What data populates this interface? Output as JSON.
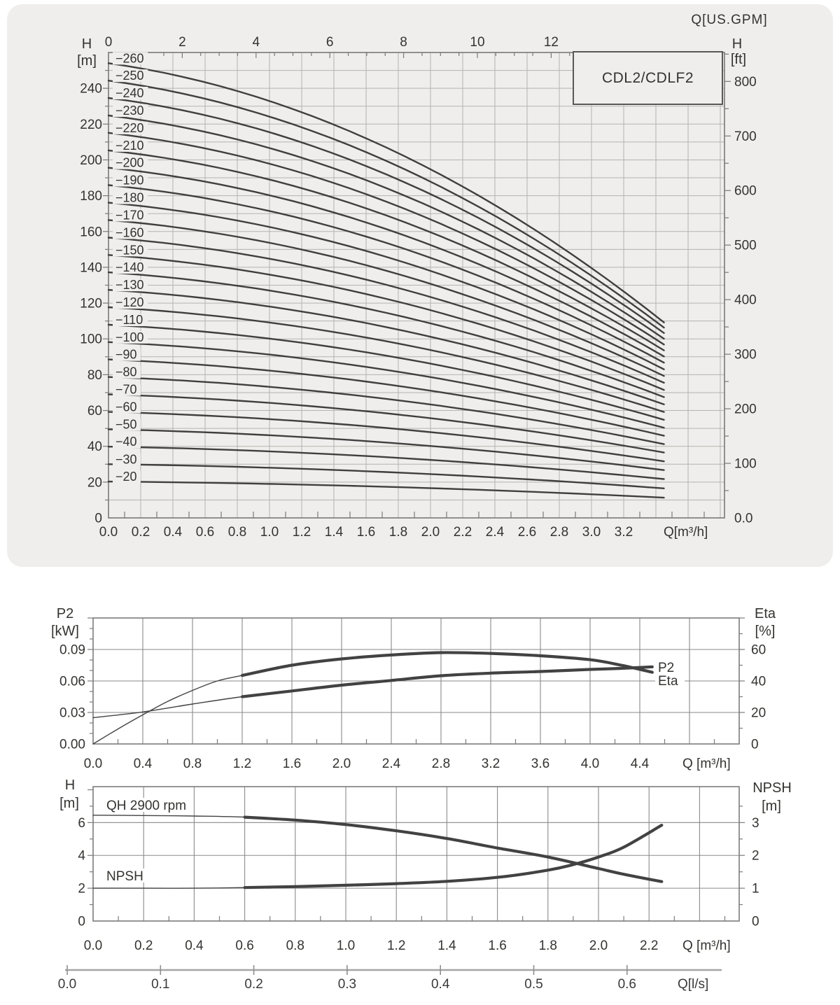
{
  "style": {
    "panel_bg": "#efeeec",
    "grid_top": "#b5b3b0",
    "border_top": "#7b7977",
    "curve_top": "#413f3e",
    "grid_white": "#8a8a8a",
    "border_white": "#7c7c7c",
    "curve_white": "#424242",
    "text": "#333330",
    "ls_axis": "#a5a5a5"
  },
  "top_chart": {
    "model_box": "CDL2/CDLF2",
    "top_axis": {
      "label": "Q[US.GPM]",
      "ticks": [
        "0",
        "2",
        "4",
        "6",
        "8",
        "10",
        "12"
      ]
    },
    "left_axis": {
      "label_1": "H",
      "label_2": "[m]",
      "ticks": [
        "0",
        "20",
        "40",
        "60",
        "80",
        "100",
        "120",
        "140",
        "160",
        "180",
        "200",
        "220",
        "240"
      ]
    },
    "right_axis": {
      "label_1": "H",
      "label_2": "[ft]",
      "ticks": [
        "0.0",
        "100",
        "200",
        "300",
        "400",
        "500",
        "600",
        "700",
        "800"
      ]
    },
    "bottom_axis": {
      "label": "Q[m³/h]",
      "ticks": [
        "0.0",
        "0.2",
        "0.4",
        "0.6",
        "0.8",
        "1.0",
        "1.2",
        "1.4",
        "1.6",
        "1.8",
        "2.0",
        "2.2",
        "2.4",
        "2.6",
        "2.8",
        "3.0",
        "3.2"
      ]
    }
  },
  "p2_chart": {
    "left_axis": {
      "label_1": "P2",
      "label_2": "[kW]",
      "ticks": [
        "0.00",
        "0.03",
        "0.06",
        "0.09"
      ]
    },
    "right_axis": {
      "label_1": "Eta",
      "label_2": "[%]",
      "ticks": [
        "0",
        "20",
        "40",
        "60"
      ]
    },
    "bottom_axis": {
      "label": "Q [m³/h]",
      "ticks": [
        "0.0",
        "0.4",
        "0.8",
        "1.2",
        "1.6",
        "2.0",
        "2.4",
        "2.8",
        "3.2",
        "3.6",
        "4.0",
        "4.4"
      ]
    },
    "end_labels": {
      "p2": "P2",
      "eta": "Eta"
    }
  },
  "qh_chart": {
    "left_axis": {
      "label_1": "H",
      "label_2": "[m]",
      "ticks": [
        "0",
        "2",
        "4",
        "6"
      ]
    },
    "right_axis": {
      "label_1": "NPSH",
      "label_2": "[m]",
      "ticks": [
        "0",
        "1",
        "2",
        "3"
      ]
    },
    "bottom_axis": {
      "label": "Q [m³/h]",
      "ticks": [
        "0.0",
        "0.2",
        "0.4",
        "0.6",
        "0.8",
        "1.0",
        "1.2",
        "1.4",
        "1.6",
        "1.8",
        "2.0",
        "2.2"
      ]
    },
    "annotations": {
      "qh": "QH 2900 rpm",
      "npsh": "NPSH"
    }
  },
  "ls_axis": {
    "label": "Q[l/s]",
    "ticks": [
      "0.0",
      "0.1",
      "0.2",
      "0.3",
      "0.4",
      "0.5",
      "0.6"
    ]
  },
  "chart_data": [
    {
      "type": "line",
      "title": "CDL2/CDLF2",
      "xlabel": "Q[m³/h]",
      "xlabel_top": "Q[US.GPM]",
      "ylabel_left": "H [m]",
      "ylabel_right": "H [ft]",
      "xlim": [
        0,
        3.83
      ],
      "xlim_top_gpm": [
        0,
        16.7
      ],
      "ylim_m": [
        0,
        260
      ],
      "ylim_ft": [
        0,
        853
      ],
      "grid": true,
      "curve_model": "H(Q)=h0-(h0-h_end)*(0.3*t+0.7*t*t), t=Q/3.45, Q from 0 to 3.45 m3/h",
      "series": [
        {
          "name": "−20",
          "h0": 20.3,
          "h_end": 11.3
        },
        {
          "name": "−30",
          "h0": 30.0,
          "h_end": 16.5
        },
        {
          "name": "−40",
          "h0": 39.8,
          "h_end": 21.7
        },
        {
          "name": "−50",
          "h0": 49.5,
          "h_end": 26.7
        },
        {
          "name": "−60",
          "h0": 59.2,
          "h_end": 31.6
        },
        {
          "name": "−70",
          "h0": 69.0,
          "h_end": 36.5
        },
        {
          "name": "−80",
          "h0": 78.7,
          "h_end": 41.2
        },
        {
          "name": "−90",
          "h0": 88.5,
          "h_end": 45.9
        },
        {
          "name": "−100",
          "h0": 98.2,
          "h_end": 50.4
        },
        {
          "name": "−110",
          "h0": 107.9,
          "h_end": 54.8
        },
        {
          "name": "−120",
          "h0": 117.7,
          "h_end": 59.2
        },
        {
          "name": "−130",
          "h0": 127.4,
          "h_end": 63.4
        },
        {
          "name": "−140",
          "h0": 137.2,
          "h_end": 67.5
        },
        {
          "name": "−150",
          "h0": 146.9,
          "h_end": 71.5
        },
        {
          "name": "−160",
          "h0": 156.6,
          "h_end": 75.5
        },
        {
          "name": "−170",
          "h0": 166.4,
          "h_end": 79.3
        },
        {
          "name": "−180",
          "h0": 176.1,
          "h_end": 83.0
        },
        {
          "name": "−190",
          "h0": 185.9,
          "h_end": 86.7
        },
        {
          "name": "−200",
          "h0": 195.6,
          "h_end": 90.2
        },
        {
          "name": "−210",
          "h0": 205.3,
          "h_end": 93.6
        },
        {
          "name": "−220",
          "h0": 215.1,
          "h_end": 96.9
        },
        {
          "name": "−230",
          "h0": 224.8,
          "h_end": 100.1
        },
        {
          "name": "−240",
          "h0": 234.6,
          "h_end": 103.3
        },
        {
          "name": "−250",
          "h0": 244.3,
          "h_end": 106.3
        },
        {
          "name": "−260",
          "h0": 254.0,
          "h_end": 109.2
        }
      ]
    },
    {
      "type": "line",
      "xlabel": "Q [m³/h]",
      "ylabel_left": "P2 [kW]",
      "ylabel_right": "Eta [%]",
      "xlim": [
        0,
        5.2
      ],
      "ylim_kw": [
        0,
        0.12
      ],
      "ylim_eta": [
        0,
        80
      ],
      "grid": true,
      "series": [
        {
          "name": "P2",
          "axis": "left",
          "thick_from": 1.2,
          "points": [
            [
              0,
              0.025
            ],
            [
              0.4,
              0.0305
            ],
            [
              0.8,
              0.038
            ],
            [
              1.2,
              0.045
            ],
            [
              1.6,
              0.0505
            ],
            [
              2.0,
              0.056
            ],
            [
              2.4,
              0.0605
            ],
            [
              2.8,
              0.065
            ],
            [
              3.2,
              0.0675
            ],
            [
              3.6,
              0.069
            ],
            [
              4.0,
              0.071
            ],
            [
              4.25,
              0.072
            ],
            [
              4.5,
              0.0735
            ]
          ]
        },
        {
          "name": "Eta",
          "axis": "right",
          "thick_from": 1.2,
          "points": [
            [
              0,
              0
            ],
            [
              0.2,
              9.5
            ],
            [
              0.4,
              18.5
            ],
            [
              0.6,
              27
            ],
            [
              0.8,
              34
            ],
            [
              1.0,
              40
            ],
            [
              1.2,
              43.5
            ],
            [
              1.6,
              50
            ],
            [
              2.0,
              54
            ],
            [
              2.4,
              56.5
            ],
            [
              2.8,
              58
            ],
            [
              3.2,
              57.5
            ],
            [
              3.6,
              56
            ],
            [
              4.0,
              53.5
            ],
            [
              4.25,
              50
            ],
            [
              4.5,
              45.5
            ]
          ]
        }
      ]
    },
    {
      "type": "line",
      "xlabel": "Q [m³/h]",
      "xlabel_secondary": "Q[l/s]",
      "ylabel_left": "H [m]",
      "ylabel_right": "NPSH [m]",
      "xlim": [
        0,
        2.56
      ],
      "xlim_ls": [
        0,
        0.6
      ],
      "ylim_h": [
        0,
        8.2
      ],
      "ylim_npsh": [
        0,
        4.1
      ],
      "grid": true,
      "series": [
        {
          "name": "QH 2900 rpm",
          "axis": "left",
          "thick_from": 0.6,
          "points": [
            [
              0,
              6.45
            ],
            [
              0.2,
              6.43
            ],
            [
              0.4,
              6.4
            ],
            [
              0.6,
              6.33
            ],
            [
              0.8,
              6.15
            ],
            [
              1.0,
              5.88
            ],
            [
              1.2,
              5.5
            ],
            [
              1.4,
              5.03
            ],
            [
              1.6,
              4.45
            ],
            [
              1.8,
              3.9
            ],
            [
              2.0,
              3.2
            ],
            [
              2.1,
              2.85
            ],
            [
              2.25,
              2.4
            ]
          ]
        },
        {
          "name": "NPSH",
          "axis": "right",
          "thick_from": 0.6,
          "points": [
            [
              0,
              1.0
            ],
            [
              0.2,
              1.0
            ],
            [
              0.4,
              1.0
            ],
            [
              0.6,
              1.02
            ],
            [
              0.8,
              1.05
            ],
            [
              1.0,
              1.09
            ],
            [
              1.2,
              1.14
            ],
            [
              1.4,
              1.21
            ],
            [
              1.6,
              1.33
            ],
            [
              1.8,
              1.55
            ],
            [
              1.9,
              1.72
            ],
            [
              2.0,
              1.95
            ],
            [
              2.1,
              2.25
            ],
            [
              2.25,
              2.92
            ]
          ]
        }
      ]
    }
  ]
}
